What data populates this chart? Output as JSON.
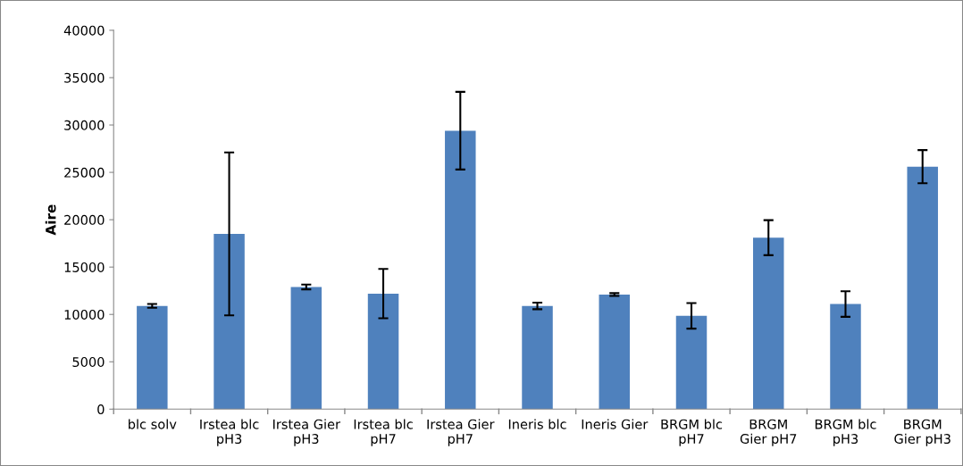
{
  "chart_data": {
    "type": "bar",
    "ylabel": "Aire",
    "categories": [
      "blc solv",
      "Irstea blc\npH3",
      "Irstea Gier\npH3",
      "Irstea blc\npH7",
      "Irstea Gier\npH7",
      "Ineris blc",
      "Ineris Gier",
      "BRGM blc\npH7",
      "BRGM\nGier pH7",
      "BRGM blc\npH3",
      "BRGM\nGier pH3"
    ],
    "values": [
      10900,
      18500,
      12900,
      12200,
      29400,
      10900,
      12100,
      9850,
      18100,
      11100,
      25600
    ],
    "errors": [
      200,
      8600,
      250,
      2600,
      4100,
      350,
      150,
      1350,
      1850,
      1350,
      1750
    ],
    "color": "#4f81bd",
    "ylim": [
      0,
      40000
    ],
    "yticks": [
      0,
      5000,
      10000,
      15000,
      20000,
      25000,
      30000,
      35000,
      40000
    ],
    "grid": false,
    "legend": false
  }
}
